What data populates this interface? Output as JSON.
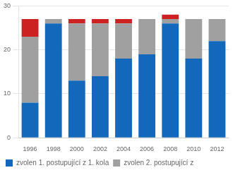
{
  "chart_data": {
    "type": "bar",
    "stacked": true,
    "categories": [
      "1996",
      "1998",
      "2000",
      "2002",
      "2004",
      "2006",
      "2008",
      "2010",
      "2012"
    ],
    "series": [
      {
        "name": "zvolen 1. postupující z 1. kola",
        "color": "#1468BB",
        "values": [
          8,
          26,
          13,
          14,
          18,
          19,
          26,
          18,
          22
        ]
      },
      {
        "name": "zvolen 2. postupující z",
        "color": "#A0A0A0",
        "values": [
          15,
          1,
          13,
          12,
          8,
          8,
          1,
          9,
          5
        ]
      },
      {
        "color": "#CC2222",
        "values": [
          4,
          0,
          1,
          1,
          1,
          0,
          1,
          0,
          0
        ]
      }
    ],
    "ylim": [
      0,
      30
    ],
    "yticks": [
      0,
      10,
      20,
      30
    ],
    "grid": true,
    "legend": "bottom"
  }
}
